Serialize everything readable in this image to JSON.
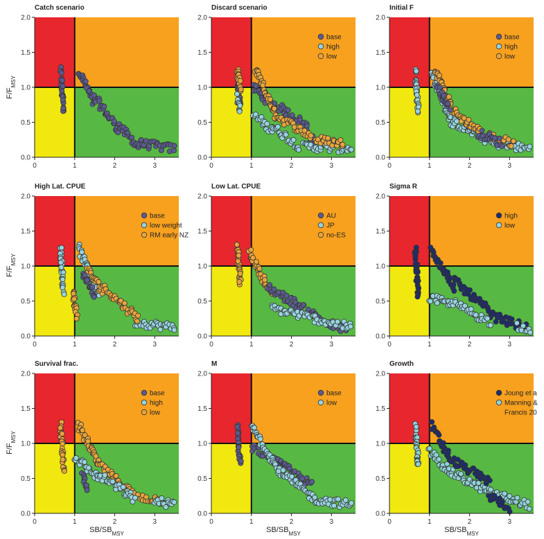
{
  "colors": {
    "red": "#e8262e",
    "orange": "#f8a11e",
    "yellow": "#f1e80f",
    "green": "#58b844",
    "base": "#5b5b90",
    "high": "#96d3df",
    "low": "#e8a43c",
    "dark": "#1e2c6b",
    "light": "#8fd2d8"
  },
  "axis_labels": {
    "x_main": "SB/SB",
    "x_sub": "MSY",
    "y_main": "F/F",
    "y_sub": "MSY"
  },
  "chart_data": [
    {
      "type": "scatter",
      "title": "Catch scenario",
      "xlim": [
        0,
        3.6
      ],
      "ylim": [
        0,
        2
      ],
      "xticks": [
        0,
        1,
        2,
        3
      ],
      "yticks": [
        "0.0",
        "0.5",
        "1.0",
        "1.5",
        "2.0"
      ],
      "reference_lines": {
        "x": 1,
        "y": 1
      },
      "legend": [],
      "series": [
        {
          "color_key": "base",
          "segments": [
            [
              0.65,
              1.25,
              0.72,
              0.65
            ],
            [
              1.1,
              1.25,
              1.5,
              0.75
            ],
            [
              1.5,
              0.85,
              2.1,
              0.4
            ],
            [
              2.1,
              0.45,
              2.6,
              0.15
            ],
            [
              2.6,
              0.2,
              3.5,
              0.12
            ]
          ]
        }
      ]
    },
    {
      "type": "scatter",
      "title": "Discard scenario",
      "xlim": [
        0,
        3.6
      ],
      "ylim": [
        0,
        2
      ],
      "xticks": [
        0,
        1,
        2,
        3
      ],
      "yticks": [
        "0.0",
        "0.5",
        "1.0",
        "1.5",
        "2.0"
      ],
      "reference_lines": {
        "x": 1,
        "y": 1
      },
      "legend": [
        {
          "label": "base",
          "color_key": "base"
        },
        {
          "label": "high",
          "color_key": "high"
        },
        {
          "label": "low",
          "color_key": "low"
        }
      ],
      "series": [
        {
          "color_key": "base",
          "segments": [
            [
              0.65,
              1.15,
              0.72,
              0.75
            ],
            [
              1.05,
              1.0,
              1.6,
              0.7
            ],
            [
              1.6,
              0.75,
              2.4,
              0.45
            ],
            [
              2.4,
              0.35,
              2.6,
              0.2
            ]
          ]
        },
        {
          "color_key": "high",
          "segments": [
            [
              0.65,
              0.85,
              0.72,
              0.65
            ],
            [
              1.05,
              0.6,
              1.5,
              0.4
            ],
            [
              1.5,
              0.45,
              2.2,
              0.15
            ],
            [
              2.3,
              0.15,
              3.5,
              0.12
            ]
          ]
        },
        {
          "color_key": "low",
          "segments": [
            [
              0.65,
              1.25,
              0.72,
              0.95
            ],
            [
              1.1,
              1.25,
              1.6,
              0.6
            ],
            [
              1.6,
              0.6,
              2.5,
              0.3
            ],
            [
              2.6,
              0.25,
              3.3,
              0.2
            ]
          ]
        }
      ]
    },
    {
      "type": "scatter",
      "title": "Initial F",
      "xlim": [
        0,
        3.6
      ],
      "ylim": [
        0,
        2
      ],
      "xticks": [
        0,
        1,
        2,
        3
      ],
      "yticks": [
        "0.0",
        "0.5",
        "1.0",
        "1.5",
        "2.0"
      ],
      "reference_lines": {
        "x": 1,
        "y": 1
      },
      "legend": [
        {
          "label": "base",
          "color_key": "base"
        },
        {
          "label": "high",
          "color_key": "high"
        },
        {
          "label": "low",
          "color_key": "low"
        }
      ],
      "series": [
        {
          "color_key": "high",
          "segments": [
            [
              0.65,
              1.25,
              0.72,
              0.65
            ],
            [
              1.05,
              1.2,
              1.6,
              0.45
            ],
            [
              1.6,
              0.5,
              2.6,
              0.2
            ],
            [
              2.6,
              0.2,
              3.5,
              0.12
            ]
          ]
        },
        {
          "color_key": "low",
          "segments": [
            [
              1.15,
              1.25,
              1.6,
              0.65
            ],
            [
              1.6,
              0.65,
              2.3,
              0.35
            ],
            [
              2.5,
              0.3,
              3.1,
              0.2
            ]
          ]
        },
        {
          "color_key": "base",
          "segments": [
            [
              1.2,
              1.0,
              1.5,
              0.7
            ],
            [
              2.2,
              0.35,
              2.8,
              0.2
            ]
          ]
        }
      ]
    },
    {
      "type": "scatter",
      "title": "High Lat. CPUE",
      "xlim": [
        0,
        3.6
      ],
      "ylim": [
        0,
        2
      ],
      "xticks": [
        0,
        1,
        2,
        3
      ],
      "yticks": [
        "0.0",
        "0.5",
        "1.0",
        "1.5",
        "2.0"
      ],
      "reference_lines": {
        "x": 1,
        "y": 1
      },
      "legend": [
        {
          "label": "base",
          "color_key": "base"
        },
        {
          "label": "low weight",
          "color_key": "high"
        },
        {
          "label": "RM early NZ",
          "color_key": "low"
        }
      ],
      "series": [
        {
          "color_key": "high",
          "segments": [
            [
              0.65,
              1.25,
              0.72,
              0.65
            ],
            [
              1.1,
              1.25,
              1.6,
              0.6
            ],
            [
              2.5,
              0.2,
              3.5,
              0.12
            ]
          ]
        },
        {
          "color_key": "low",
          "segments": [
            [
              0.95,
              0.65,
              1.05,
              0.3
            ],
            [
              1.3,
              0.95,
              1.7,
              0.65
            ],
            [
              1.7,
              0.7,
              2.6,
              0.25
            ]
          ]
        },
        {
          "color_key": "base",
          "segments": [
            [
              1.2,
              0.9,
              1.5,
              0.6
            ]
          ]
        }
      ]
    },
    {
      "type": "scatter",
      "title": "Low Lat. CPUE",
      "xlim": [
        0,
        3.6
      ],
      "ylim": [
        0,
        2
      ],
      "xticks": [
        0,
        1,
        2,
        3
      ],
      "yticks": [
        "0.0",
        "0.5",
        "1.0",
        "1.5",
        "2.0"
      ],
      "reference_lines": {
        "x": 1,
        "y": 1
      },
      "legend": [
        {
          "label": "AU",
          "color_key": "base"
        },
        {
          "label": "JP",
          "color_key": "high"
        },
        {
          "label": "no-ES",
          "color_key": "low"
        }
      ],
      "series": [
        {
          "color_key": "low",
          "segments": [
            [
              0.65,
              1.25,
              0.72,
              0.75
            ],
            [
              0.95,
              1.2,
              1.5,
              0.6
            ]
          ]
        },
        {
          "color_key": "base",
          "segments": [
            [
              1.4,
              0.7,
              2.0,
              0.5
            ],
            [
              2.0,
              0.5,
              3.0,
              0.15
            ],
            [
              3.0,
              0.15,
              3.4,
              0.1
            ]
          ]
        },
        {
          "color_key": "high",
          "segments": [
            [
              1.5,
              0.4,
              3.5,
              0.12
            ]
          ]
        }
      ]
    },
    {
      "type": "scatter",
      "title": "Sigma R",
      "xlim": [
        0,
        3.6
      ],
      "ylim": [
        0,
        2
      ],
      "xticks": [
        0,
        1,
        2,
        3
      ],
      "yticks": [
        "0.0",
        "0.5",
        "1.0",
        "1.5",
        "2.0"
      ],
      "reference_lines": {
        "x": 1,
        "y": 1
      },
      "legend": [
        {
          "label": "high",
          "color_key": "dark"
        },
        {
          "label": "low",
          "color_key": "high"
        }
      ],
      "series": [
        {
          "color_key": "dark",
          "segments": [
            [
              0.65,
              1.25,
              0.72,
              0.55
            ],
            [
              1.05,
              1.25,
              1.6,
              0.7
            ],
            [
              1.6,
              0.8,
              2.5,
              0.35
            ],
            [
              2.5,
              0.3,
              3.4,
              0.12
            ]
          ]
        },
        {
          "color_key": "high",
          "segments": [
            [
              1.0,
              0.55,
              1.5,
              0.45
            ],
            [
              1.5,
              0.5,
              2.5,
              0.2
            ],
            [
              3.2,
              0.15,
              3.5,
              0.1
            ]
          ]
        }
      ]
    },
    {
      "type": "scatter",
      "title": "Survival frac.",
      "xlim": [
        0,
        3.6
      ],
      "ylim": [
        0,
        2
      ],
      "xticks": [
        0,
        1,
        2,
        3
      ],
      "yticks": [
        "0.0",
        "0.5",
        "1.0",
        "1.5",
        "2.0"
      ],
      "reference_lines": {
        "x": 1,
        "y": 1
      },
      "legend": [
        {
          "label": "base",
          "color_key": "base"
        },
        {
          "label": "high",
          "color_key": "high"
        },
        {
          "label": "low",
          "color_key": "low"
        }
      ],
      "series": [
        {
          "color_key": "low",
          "segments": [
            [
              0.65,
              1.25,
              0.72,
              0.65
            ],
            [
              1.1,
              1.25,
              1.6,
              0.7
            ],
            [
              1.6,
              0.7,
              2.5,
              0.25
            ],
            [
              2.5,
              0.25,
              3.2,
              0.18
            ]
          ]
        },
        {
          "color_key": "high",
          "segments": [
            [
              1.0,
              0.8,
              1.6,
              0.5
            ],
            [
              1.6,
              0.55,
              2.5,
              0.2
            ],
            [
              3.0,
              0.18,
              3.5,
              0.12
            ]
          ]
        },
        {
          "color_key": "base",
          "segments": [
            [
              1.2,
              0.55,
              1.3,
              0.35
            ]
          ]
        }
      ]
    },
    {
      "type": "scatter",
      "title": "M",
      "xlim": [
        0,
        3.6
      ],
      "ylim": [
        0,
        2
      ],
      "xticks": [
        0,
        1,
        2,
        3
      ],
      "yticks": [
        "0.0",
        "0.5",
        "1.0",
        "1.5",
        "2.0"
      ],
      "reference_lines": {
        "x": 1,
        "y": 1
      },
      "legend": [
        {
          "label": "base",
          "color_key": "base"
        },
        {
          "label": "low",
          "color_key": "high"
        }
      ],
      "series": [
        {
          "color_key": "base",
          "segments": [
            [
              0.65,
              1.25,
              0.72,
              0.7
            ],
            [
              1.0,
              0.95,
              1.6,
              0.75
            ],
            [
              1.6,
              0.75,
              2.5,
              0.4
            ]
          ]
        },
        {
          "color_key": "high",
          "segments": [
            [
              1.0,
              1.25,
              1.7,
              0.6
            ],
            [
              1.7,
              0.6,
              2.6,
              0.2
            ],
            [
              2.6,
              0.2,
              3.5,
              0.12
            ]
          ]
        }
      ]
    },
    {
      "type": "scatter",
      "title": "Growth",
      "xlim": [
        0,
        3.6
      ],
      "ylim": [
        0,
        2
      ],
      "xticks": [
        0,
        1,
        2,
        3
      ],
      "yticks": [
        "0.0",
        "0.5",
        "1.0",
        "1.5",
        "2.0"
      ],
      "reference_lines": {
        "x": 1,
        "y": 1
      },
      "legend": [
        {
          "label": "Joung et a",
          "color_key": "dark"
        },
        {
          "label": "Manning &",
          "color_key": "light"
        },
        {
          "label": "Francis 20",
          "color_key": null
        }
      ],
      "series": [
        {
          "color_key": "light",
          "segments": [
            [
              0.65,
              1.25,
              0.72,
              0.65
            ],
            [
              1.0,
              0.9,
              1.5,
              0.6
            ],
            [
              1.5,
              0.6,
              2.5,
              0.3
            ],
            [
              2.5,
              0.3,
              3.5,
              0.12
            ]
          ]
        },
        {
          "color_key": "dark",
          "segments": [
            [
              1.05,
              1.25,
              1.6,
              0.7
            ],
            [
              1.6,
              0.75,
              2.5,
              0.45
            ],
            [
              2.5,
              0.25,
              3.0,
              0.08
            ]
          ]
        }
      ]
    }
  ]
}
